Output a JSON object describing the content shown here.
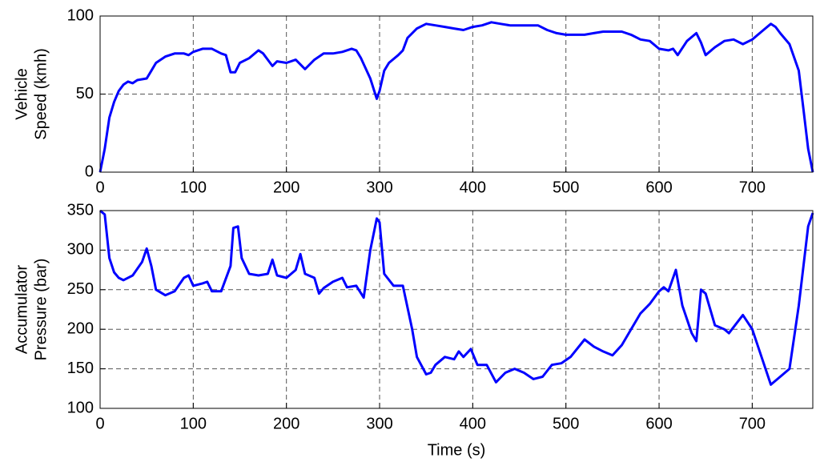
{
  "chart_data": [
    {
      "type": "line",
      "ylabel": [
        "Vehicle",
        "Speed (kmh)"
      ],
      "color": "#0000ff",
      "grid": true,
      "x": [
        0,
        5,
        10,
        15,
        20,
        25,
        30,
        35,
        40,
        50,
        55,
        60,
        70,
        80,
        90,
        95,
        100,
        110,
        120,
        130,
        135,
        140,
        145,
        150,
        160,
        170,
        175,
        180,
        185,
        190,
        200,
        210,
        220,
        230,
        240,
        250,
        260,
        270,
        275,
        280,
        290,
        297,
        300,
        305,
        310,
        320,
        325,
        330,
        340,
        350,
        360,
        370,
        380,
        390,
        400,
        410,
        420,
        430,
        440,
        450,
        470,
        480,
        490,
        500,
        520,
        530,
        540,
        560,
        570,
        580,
        590,
        600,
        610,
        615,
        620,
        630,
        640,
        645,
        650,
        660,
        670,
        680,
        690,
        700,
        710,
        720,
        725,
        730,
        740,
        750,
        755,
        760,
        765
      ],
      "values": [
        0,
        15,
        35,
        45,
        52,
        56,
        58,
        57,
        59,
        60,
        65,
        70,
        74,
        76,
        76,
        75,
        77,
        79,
        79,
        76,
        75,
        64,
        64,
        70,
        73,
        78,
        76,
        72,
        68,
        71,
        70,
        72,
        66,
        72,
        76,
        76,
        77,
        79,
        78,
        73,
        60,
        47,
        52,
        65,
        70,
        75,
        78,
        86,
        92,
        95,
        94,
        93,
        92,
        91,
        93,
        94,
        96,
        95,
        94,
        94,
        94,
        91,
        89,
        88,
        88,
        89,
        90,
        90,
        88,
        85,
        84,
        79,
        78,
        79,
        75,
        84,
        89,
        83,
        75,
        80,
        84,
        85,
        82,
        85,
        90,
        95,
        93,
        89,
        82,
        65,
        40,
        15,
        0
      ],
      "xlim": [
        0,
        765
      ],
      "xticks": [
        0,
        100,
        200,
        300,
        400,
        500,
        600,
        700
      ],
      "ylim": [
        0,
        100
      ],
      "yticks": [
        0,
        50,
        100
      ]
    },
    {
      "type": "line",
      "ylabel": [
        "Accumulator",
        "Pressure (bar)"
      ],
      "xlabel": "Time (s)",
      "color": "#0000ff",
      "grid": true,
      "x": [
        0,
        5,
        10,
        15,
        20,
        25,
        35,
        45,
        50,
        55,
        60,
        70,
        80,
        90,
        95,
        100,
        110,
        115,
        120,
        130,
        140,
        143,
        148,
        152,
        160,
        170,
        180,
        185,
        190,
        200,
        210,
        215,
        220,
        230,
        235,
        240,
        250,
        260,
        265,
        275,
        283,
        290,
        297,
        300,
        305,
        315,
        325,
        335,
        340,
        350,
        355,
        360,
        370,
        380,
        385,
        390,
        398,
        405,
        415,
        425,
        435,
        445,
        455,
        465,
        475,
        485,
        495,
        505,
        520,
        530,
        540,
        550,
        560,
        570,
        580,
        590,
        600,
        605,
        610,
        618,
        625,
        635,
        640,
        645,
        650,
        660,
        670,
        675,
        690,
        700,
        710,
        720,
        730,
        740,
        750,
        760,
        765
      ],
      "values": [
        350,
        345,
        290,
        272,
        265,
        262,
        268,
        285,
        302,
        280,
        250,
        243,
        248,
        265,
        268,
        255,
        258,
        260,
        248,
        248,
        280,
        328,
        330,
        290,
        270,
        268,
        270,
        288,
        268,
        265,
        275,
        295,
        270,
        265,
        245,
        252,
        260,
        265,
        253,
        255,
        240,
        300,
        340,
        335,
        270,
        255,
        255,
        200,
        165,
        143,
        145,
        155,
        165,
        162,
        172,
        165,
        175,
        155,
        155,
        133,
        145,
        150,
        145,
        137,
        140,
        155,
        157,
        165,
        187,
        178,
        172,
        167,
        180,
        200,
        220,
        232,
        248,
        253,
        248,
        275,
        230,
        195,
        185,
        250,
        245,
        205,
        200,
        195,
        218,
        200,
        165,
        130,
        140,
        150,
        230,
        330,
        347
      ],
      "xlim": [
        0,
        765
      ],
      "xticks": [
        0,
        100,
        200,
        300,
        400,
        500,
        600,
        700
      ],
      "ylim": [
        100,
        350
      ],
      "yticks": [
        100,
        150,
        200,
        250,
        300,
        350
      ]
    }
  ]
}
